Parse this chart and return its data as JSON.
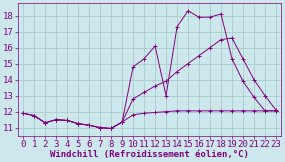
{
  "xlabel": "Windchill (Refroidissement éolien,°C)",
  "bg_color": "#cce8ec",
  "grid_color": "#aacccc",
  "line_color": "#800080",
  "text_color": "#800080",
  "xlim": [
    -0.5,
    23.5
  ],
  "ylim": [
    10.5,
    18.8
  ],
  "yticks": [
    11,
    12,
    13,
    14,
    15,
    16,
    17,
    18
  ],
  "xticks": [
    0,
    1,
    2,
    3,
    4,
    5,
    6,
    7,
    8,
    9,
    10,
    11,
    12,
    13,
    14,
    15,
    16,
    17,
    18,
    19,
    20,
    21,
    22,
    23
  ],
  "series": [
    {
      "x": [
        0,
        1,
        2,
        3,
        4,
        5,
        6,
        7,
        8,
        9,
        10,
        11,
        12,
        13,
        14,
        15,
        16,
        17,
        18,
        19,
        20,
        21,
        22,
        23
      ],
      "y": [
        11.9,
        11.75,
        11.3,
        11.5,
        11.45,
        11.25,
        11.15,
        11.0,
        10.95,
        11.35,
        11.8,
        11.9,
        11.95,
        12.0,
        12.05,
        12.05,
        12.05,
        12.05,
        12.05,
        12.05,
        12.05,
        12.05,
        12.05,
        12.05
      ]
    },
    {
      "x": [
        0,
        1,
        2,
        3,
        4,
        5,
        6,
        7,
        8,
        9,
        10,
        11,
        12,
        13,
        14,
        15,
        16,
        17,
        18,
        19,
        20,
        21,
        22,
        23
      ],
      "y": [
        11.9,
        11.75,
        11.3,
        11.5,
        11.45,
        11.25,
        11.15,
        11.0,
        10.95,
        11.35,
        12.8,
        13.2,
        13.6,
        13.9,
        14.5,
        15.0,
        15.5,
        16.0,
        16.5,
        16.6,
        15.3,
        14.0,
        13.0,
        12.1
      ]
    },
    {
      "x": [
        0,
        1,
        2,
        3,
        4,
        5,
        6,
        7,
        8,
        9,
        10,
        11,
        12,
        13,
        14,
        15,
        16,
        17,
        18,
        19,
        20,
        21,
        22,
        23
      ],
      "y": [
        11.9,
        11.75,
        11.3,
        11.5,
        11.45,
        11.25,
        11.15,
        11.0,
        10.95,
        11.35,
        14.8,
        15.3,
        16.1,
        13.0,
        17.3,
        18.3,
        17.9,
        17.9,
        18.1,
        15.3,
        13.9,
        12.9,
        12.05,
        12.05
      ]
    }
  ],
  "font_size": 6.5,
  "font_family": "monospace"
}
